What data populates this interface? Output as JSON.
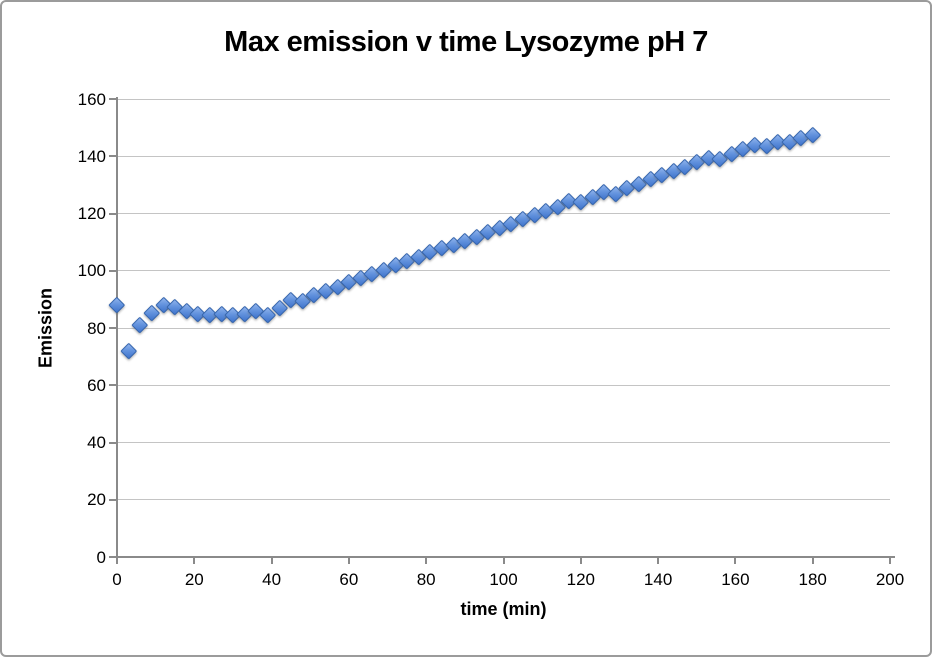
{
  "window": {
    "background": "#ffffff",
    "border_color": "#9b9b9b"
  },
  "chart_data": {
    "type": "scatter",
    "title": "Max emission v time Lysozyme pH 7",
    "xlabel": "time (min)",
    "ylabel": "Emission",
    "xlim": [
      0,
      200
    ],
    "ylim": [
      0,
      160
    ],
    "x_ticks": [
      0,
      20,
      40,
      60,
      80,
      100,
      120,
      140,
      160,
      180,
      200
    ],
    "y_ticks": [
      0,
      20,
      40,
      60,
      80,
      100,
      120,
      140,
      160
    ],
    "grid": true,
    "legend": false,
    "marker": {
      "shape": "diamond",
      "fill_light": "#90b3ec",
      "fill_mid": "#6494de",
      "fill_dark": "#4074cc",
      "border": "#3565ad"
    },
    "colors": {
      "gridline": "#c4c4c4",
      "axis": "#8a8a8a",
      "text": "#000000"
    },
    "series": [
      {
        "name": "Max emission",
        "x": [
          0,
          3,
          6,
          9,
          12,
          15,
          18,
          21,
          24,
          27,
          30,
          33,
          36,
          39,
          42,
          45,
          48,
          51,
          54,
          57,
          60,
          63,
          66,
          69,
          72,
          75,
          78,
          81,
          84,
          87,
          90,
          93,
          96,
          99,
          102,
          105,
          108,
          111,
          114,
          117,
          120,
          123,
          126,
          129,
          132,
          135,
          138,
          141,
          144,
          147,
          150,
          153,
          156,
          159,
          162,
          165,
          168,
          171,
          174,
          177,
          180
        ],
        "y": [
          88,
          72,
          81,
          85.5,
          88,
          87.5,
          86,
          85,
          84.5,
          85,
          84.5,
          85,
          86,
          84.5,
          87,
          90,
          89.5,
          91.5,
          93,
          94.5,
          96,
          97.5,
          99,
          100.5,
          102,
          103.5,
          105,
          106.5,
          108,
          109,
          110.5,
          112,
          113.5,
          115,
          116.5,
          118,
          119.5,
          121,
          122.5,
          124.5,
          124,
          126,
          127.5,
          127,
          129,
          130.5,
          132,
          133.5,
          135,
          136.5,
          138,
          139.5,
          139,
          141,
          142.5,
          144,
          143.5,
          145,
          145,
          146.5,
          147.5
        ]
      }
    ]
  }
}
